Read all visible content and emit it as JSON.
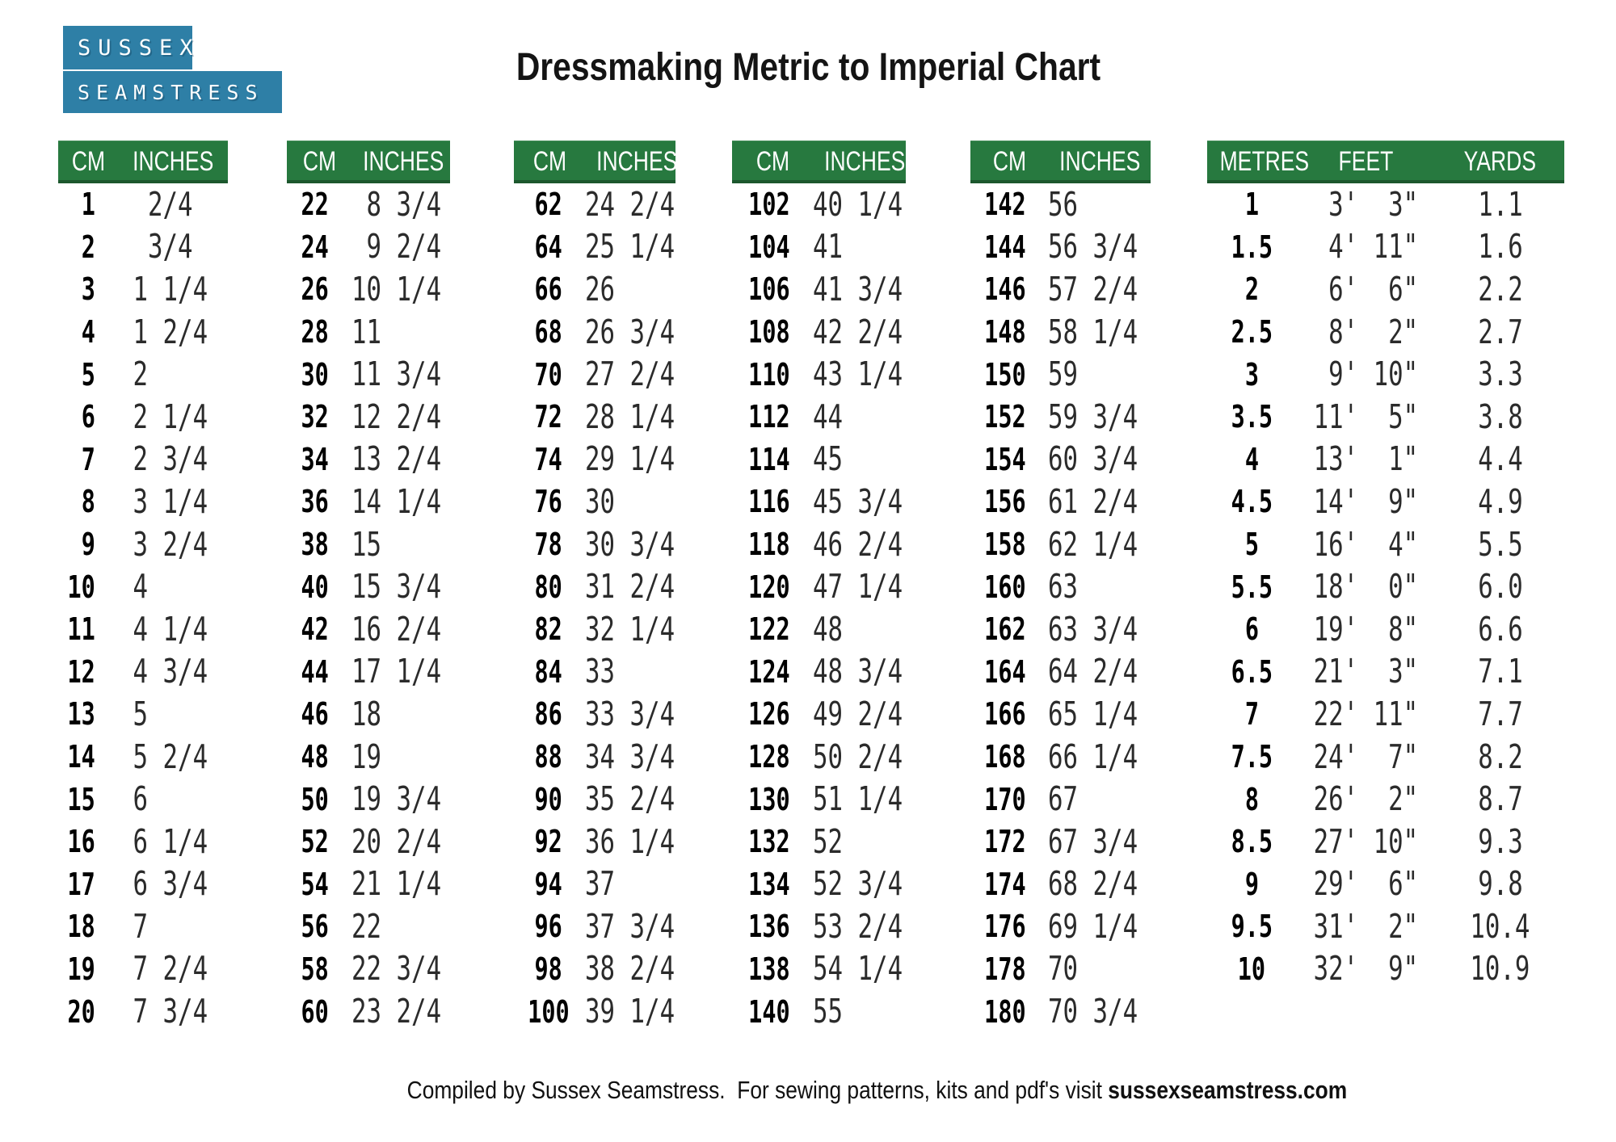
{
  "logo": {
    "line1": "SUSSEX",
    "line2": "SEAMSTRESS"
  },
  "title": "Dressmaking Metric to Imperial Chart",
  "colors": {
    "table_header_green": "#27793f",
    "logo_blue": "#2e7fa6",
    "header_text": "#ffffff"
  },
  "tables": [
    {
      "headers": [
        "CM",
        "INCHES"
      ],
      "rows": [
        [
          "1",
          "2/4"
        ],
        [
          "2",
          "3/4"
        ],
        [
          "3",
          "1 1/4"
        ],
        [
          "4",
          "1 2/4"
        ],
        [
          "5",
          "2"
        ],
        [
          "6",
          "2 1/4"
        ],
        [
          "7",
          "2 3/4"
        ],
        [
          "8",
          "3 1/4"
        ],
        [
          "9",
          "3 2/4"
        ],
        [
          "10",
          "4"
        ],
        [
          "11",
          "4 1/4"
        ],
        [
          "12",
          "4 3/4"
        ],
        [
          "13",
          "5"
        ],
        [
          "14",
          "5 2/4"
        ],
        [
          "15",
          "6"
        ],
        [
          "16",
          "6 1/4"
        ],
        [
          "17",
          "6 3/4"
        ],
        [
          "18",
          "7"
        ],
        [
          "19",
          "7 2/4"
        ],
        [
          "20",
          "7 3/4"
        ]
      ]
    },
    {
      "headers": [
        "CM",
        "INCHES"
      ],
      "rows": [
        [
          "22",
          "8 3/4"
        ],
        [
          "24",
          "9 2/4"
        ],
        [
          "26",
          "10 1/4"
        ],
        [
          "28",
          "11"
        ],
        [
          "30",
          "11 3/4"
        ],
        [
          "32",
          "12 2/4"
        ],
        [
          "34",
          "13 2/4"
        ],
        [
          "36",
          "14 1/4"
        ],
        [
          "38",
          "15"
        ],
        [
          "40",
          "15 3/4"
        ],
        [
          "42",
          "16 2/4"
        ],
        [
          "44",
          "17 1/4"
        ],
        [
          "46",
          "18"
        ],
        [
          "48",
          "19"
        ],
        [
          "50",
          "19 3/4"
        ],
        [
          "52",
          "20 2/4"
        ],
        [
          "54",
          "21 1/4"
        ],
        [
          "56",
          "22"
        ],
        [
          "58",
          "22 3/4"
        ],
        [
          "60",
          "23 2/4"
        ]
      ]
    },
    {
      "headers": [
        "CM",
        "INCHES"
      ],
      "rows": [
        [
          "62",
          "24 2/4"
        ],
        [
          "64",
          "25 1/4"
        ],
        [
          "66",
          "26"
        ],
        [
          "68",
          "26 3/4"
        ],
        [
          "70",
          "27 2/4"
        ],
        [
          "72",
          "28 1/4"
        ],
        [
          "74",
          "29 1/4"
        ],
        [
          "76",
          "30"
        ],
        [
          "78",
          "30 3/4"
        ],
        [
          "80",
          "31 2/4"
        ],
        [
          "82",
          "32 1/4"
        ],
        [
          "84",
          "33"
        ],
        [
          "86",
          "33 3/4"
        ],
        [
          "88",
          "34 3/4"
        ],
        [
          "90",
          "35 2/4"
        ],
        [
          "92",
          "36 1/4"
        ],
        [
          "94",
          "37"
        ],
        [
          "96",
          "37 3/4"
        ],
        [
          "98",
          "38 2/4"
        ],
        [
          "100",
          "39 1/4"
        ]
      ]
    },
    {
      "headers": [
        "CM",
        "INCHES"
      ],
      "rows": [
        [
          "102",
          "40 1/4"
        ],
        [
          "104",
          "41"
        ],
        [
          "106",
          "41 3/4"
        ],
        [
          "108",
          "42 2/4"
        ],
        [
          "110",
          "43 1/4"
        ],
        [
          "112",
          "44"
        ],
        [
          "114",
          "45"
        ],
        [
          "116",
          "45 3/4"
        ],
        [
          "118",
          "46 2/4"
        ],
        [
          "120",
          "47 1/4"
        ],
        [
          "122",
          "48"
        ],
        [
          "124",
          "48 3/4"
        ],
        [
          "126",
          "49 2/4"
        ],
        [
          "128",
          "50 2/4"
        ],
        [
          "130",
          "51 1/4"
        ],
        [
          "132",
          "52"
        ],
        [
          "134",
          "52 3/4"
        ],
        [
          "136",
          "53 2/4"
        ],
        [
          "138",
          "54 1/4"
        ],
        [
          "140",
          "55"
        ]
      ]
    },
    {
      "headers": [
        "CM",
        "INCHES"
      ],
      "rows": [
        [
          "142",
          "56"
        ],
        [
          "144",
          "56 3/4"
        ],
        [
          "146",
          "57 2/4"
        ],
        [
          "148",
          "58 1/4"
        ],
        [
          "150",
          "59"
        ],
        [
          "152",
          "59 3/4"
        ],
        [
          "154",
          "60 3/4"
        ],
        [
          "156",
          "61 2/4"
        ],
        [
          "158",
          "62 1/4"
        ],
        [
          "160",
          "63"
        ],
        [
          "162",
          "63 3/4"
        ],
        [
          "164",
          "64 2/4"
        ],
        [
          "166",
          "65 1/4"
        ],
        [
          "168",
          "66 1/4"
        ],
        [
          "170",
          "67"
        ],
        [
          "172",
          "67 3/4"
        ],
        [
          "174",
          "68 2/4"
        ],
        [
          "176",
          "69 1/4"
        ],
        [
          "178",
          "70"
        ],
        [
          "180",
          "70 3/4"
        ]
      ]
    },
    {
      "headers": [
        "METRES",
        "FEET",
        "YARDS"
      ],
      "rows": [
        [
          "1",
          "3' 3\"",
          "1.1"
        ],
        [
          "1.5",
          "4' 11\"",
          "1.6"
        ],
        [
          "2",
          "6' 6\"",
          "2.2"
        ],
        [
          "2.5",
          "8' 2\"",
          "2.7"
        ],
        [
          "3",
          "9' 10\"",
          "3.3"
        ],
        [
          "3.5",
          "11' 5\"",
          "3.8"
        ],
        [
          "4",
          "13' 1\"",
          "4.4"
        ],
        [
          "4.5",
          "14' 9\"",
          "4.9"
        ],
        [
          "5",
          "16' 4\"",
          "5.5"
        ],
        [
          "5.5",
          "18' 0\"",
          "6.0"
        ],
        [
          "6",
          "19' 8\"",
          "6.6"
        ],
        [
          "6.5",
          "21' 3\"",
          "7.1"
        ],
        [
          "7",
          "22' 11\"",
          "7.7"
        ],
        [
          "7.5",
          "24' 7\"",
          "8.2"
        ],
        [
          "8",
          "26' 2\"",
          "8.7"
        ],
        [
          "8.5",
          "27' 10\"",
          "9.3"
        ],
        [
          "9",
          "29' 6\"",
          "9.8"
        ],
        [
          "9.5",
          "31' 2\"",
          "10.4"
        ],
        [
          "10",
          "32' 9\"",
          "10.9"
        ]
      ]
    }
  ],
  "footer": {
    "text": "Compiled by Sussex Seamstress.  For sewing patterns, kits and pdf's visit ",
    "site": "sussexseamstress.com"
  }
}
